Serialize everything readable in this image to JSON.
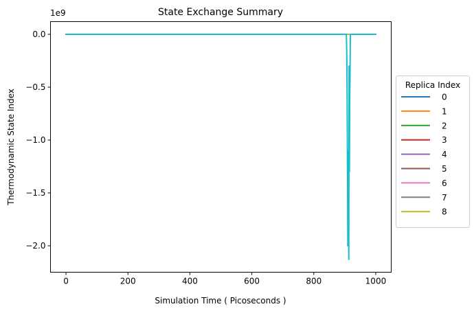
{
  "chart_data": {
    "type": "line",
    "title": "State Exchange Summary",
    "xlabel": "Simulation Time ( Picoseconds )",
    "ylabel": "Thermodynamic State Index",
    "y_offset_label": "1e9",
    "xlim": [
      -50,
      1050
    ],
    "ylim": [
      -2.25,
      0.12
    ],
    "y_units_scale": "1e9",
    "x_ticks": [
      0,
      200,
      400,
      600,
      800,
      1000
    ],
    "x_tick_labels": [
      "0",
      "200",
      "400",
      "600",
      "800",
      "1000"
    ],
    "y_ticks": [
      0.0,
      -0.5,
      -1.0,
      -1.5,
      -2.0
    ],
    "y_tick_labels": [
      "0.0",
      "−0.5",
      "−1.0",
      "−1.5",
      "−2.0"
    ],
    "grid": false,
    "legend": {
      "title": "Replica Index",
      "placement": "outside-right",
      "entries": [
        {
          "label": "0",
          "color": "#1f77b4"
        },
        {
          "label": "1",
          "color": "#ff7f0e"
        },
        {
          "label": "2",
          "color": "#2ca02c"
        },
        {
          "label": "3",
          "color": "#d62728"
        },
        {
          "label": "4",
          "color": "#9467bd"
        },
        {
          "label": "5",
          "color": "#8c564b"
        },
        {
          "label": "6",
          "color": "#e377c2"
        },
        {
          "label": "7",
          "color": "#7f7f7f"
        },
        {
          "label": "8",
          "color": "#bcbd22"
        }
      ]
    },
    "series": [
      {
        "name": "0",
        "color": "#1f77b4",
        "x": [
          0,
          905,
          910,
          915,
          920,
          1000
        ],
        "y": [
          0,
          0,
          0,
          0,
          0,
          0
        ]
      },
      {
        "name": "1",
        "color": "#ff7f0e",
        "x": [
          0,
          905,
          910,
          915,
          920,
          1000
        ],
        "y": [
          0,
          0,
          0,
          0,
          0,
          0
        ]
      },
      {
        "name": "2",
        "color": "#2ca02c",
        "x": [
          0,
          905,
          910,
          915,
          920,
          1000
        ],
        "y": [
          0,
          0,
          0,
          0,
          0,
          0
        ]
      },
      {
        "name": "3",
        "color": "#d62728",
        "x": [
          0,
          905,
          910,
          915,
          920,
          1000
        ],
        "y": [
          0,
          0,
          0,
          0,
          0,
          0
        ]
      },
      {
        "name": "4",
        "color": "#9467bd",
        "x": [
          0,
          905,
          910,
          915,
          920,
          1000
        ],
        "y": [
          0,
          0,
          0,
          0,
          0,
          0
        ]
      },
      {
        "name": "5",
        "color": "#8c564b",
        "x": [
          0,
          905,
          910,
          915,
          920,
          1000
        ],
        "y": [
          0,
          0,
          0,
          0,
          0,
          0
        ]
      },
      {
        "name": "6",
        "color": "#e377c2",
        "x": [
          0,
          905,
          910,
          915,
          920,
          1000
        ],
        "y": [
          0,
          0,
          0,
          0,
          0,
          0
        ]
      },
      {
        "name": "7",
        "color": "#7f7f7f",
        "x": [
          0,
          905,
          910,
          915,
          920,
          1000
        ],
        "y": [
          0,
          0,
          0,
          0,
          0,
          0
        ]
      },
      {
        "name": "8",
        "color": "#bcbd22",
        "x": [
          0,
          905,
          910,
          915,
          920,
          1000
        ],
        "y": [
          0,
          0,
          0,
          0,
          0,
          0
        ]
      },
      {
        "color": "#17becf",
        "x": [
          0,
          905,
          906,
          907,
          908,
          909,
          910,
          911,
          912,
          913,
          914,
          915,
          916,
          917,
          918,
          919,
          920,
          921,
          922,
          1000
        ],
        "y": [
          0,
          0,
          -0.1,
          -0.3,
          -0.8,
          -1.4,
          -2.0,
          -1.1,
          -1.8,
          -2.13,
          -0.3,
          -1.3,
          -0.6,
          -0.4,
          0,
          0,
          0,
          0,
          0,
          0
        ]
      }
    ]
  }
}
